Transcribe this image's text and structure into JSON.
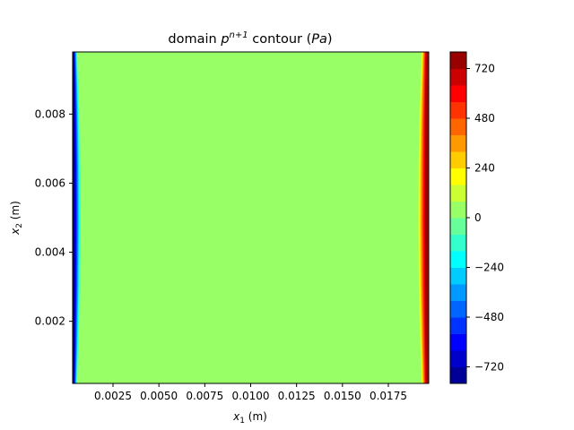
{
  "chart_data": {
    "type": "heatmap",
    "title": {
      "prefix": "domain ",
      "math_base": "p",
      "math_sup": "n+1",
      "mid": " contour (",
      "unit": "Pa",
      "suffix": ")"
    },
    "xlabel": {
      "var": "x",
      "sub": "1",
      "unit": " (m)"
    },
    "ylabel": {
      "var": "x",
      "sub": "2",
      "unit": " (m)"
    },
    "xlim": [
      0.0003,
      0.0197
    ],
    "ylim": [
      0.0002,
      0.0098
    ],
    "x_ticks": [
      0.0025,
      0.005,
      0.0075,
      0.01,
      0.0125,
      0.015,
      0.0175
    ],
    "x_tick_labels": [
      "0.0025",
      "0.0050",
      "0.0075",
      "0.0100",
      "0.0125",
      "0.0150",
      "0.0175"
    ],
    "y_ticks": [
      0.002,
      0.004,
      0.006,
      0.008
    ],
    "y_tick_labels": [
      "0.002",
      "0.004",
      "0.006",
      "0.008"
    ],
    "colorbar": {
      "range": [
        -800,
        800
      ],
      "ticks": [
        -720,
        -480,
        -240,
        0,
        240,
        480,
        720
      ],
      "tick_labels": [
        "−720",
        "−480",
        "−240",
        "0",
        "240",
        "480",
        "720"
      ],
      "levels": 20,
      "colormap": "jet"
    },
    "field": {
      "background_value": 0,
      "left_edge_min": -780,
      "right_edge_max": 780
    },
    "colors": {
      "background": "#66ff8f",
      "axis": "#000000"
    }
  }
}
